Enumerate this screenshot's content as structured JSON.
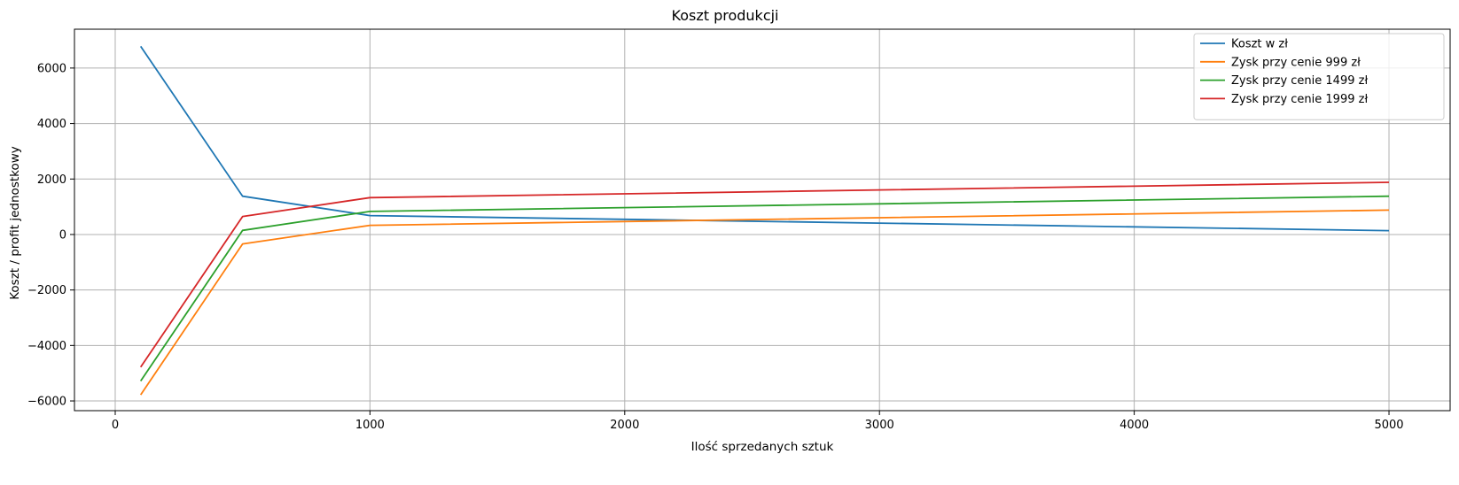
{
  "chart_data": {
    "type": "line",
    "title": "Koszt produkcji",
    "xlabel": "Ilość sprzedanych sztuk",
    "ylabel": "Koszt / profit jednostkowy",
    "xlim": [
      -160,
      5240
    ],
    "ylim": [
      -6350,
      7400
    ],
    "xticks": [
      0,
      1000,
      2000,
      3000,
      4000,
      5000
    ],
    "yticks": [
      -6000,
      -4000,
      -2000,
      0,
      2000,
      4000,
      6000
    ],
    "xtick_labels": [
      "0",
      "1000",
      "2000",
      "3000",
      "4000",
      "5000"
    ],
    "ytick_labels": [
      "−6000",
      "−4000",
      "−2000",
      "0",
      "2000",
      "4000",
      "6000"
    ],
    "grid": true,
    "legend_position": "top-right",
    "x": [
      100,
      500,
      1000,
      5000
    ],
    "series": [
      {
        "name": "Koszt w zł",
        "color": "#1f77b4",
        "values": [
          6780,
          1380,
          680,
          140
        ]
      },
      {
        "name": "Zysk przy cenie 999 zł",
        "color": "#ff7f0e",
        "values": [
          -5780,
          -340,
          330,
          880
        ]
      },
      {
        "name": "Zysk przy cenie 1499 zł",
        "color": "#2ca02c",
        "values": [
          -5280,
          150,
          830,
          1380
        ]
      },
      {
        "name": "Zysk przy cenie 1999 zł",
        "color": "#d62728",
        "values": [
          -4780,
          650,
          1330,
          1880
        ]
      }
    ]
  }
}
